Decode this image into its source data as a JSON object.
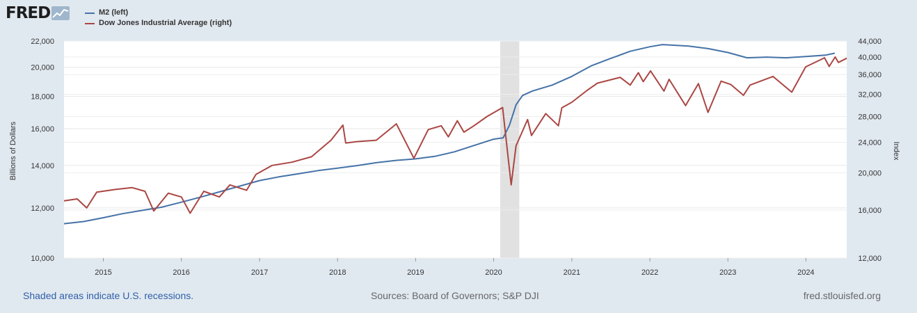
{
  "header": {
    "logo_text": "FRED",
    "logo_icon": "line-chart-icon"
  },
  "legend": [
    {
      "label": "M2 (left)",
      "color": "#4572a7"
    },
    {
      "label": "Dow Jones Industrial Average (right)",
      "color": "#aa4643"
    }
  ],
  "footer": {
    "recession_note": "Shaded areas indicate U.S. recessions.",
    "sources": "Sources: Board of Governors; S&P DJI",
    "site": "fred.stlouisfed.org"
  },
  "chart_data": {
    "type": "line",
    "scale": "log",
    "grid": true,
    "x_range": [
      "2014-07-01",
      "2024-07-10"
    ],
    "x_ticks": [
      "2015",
      "2016",
      "2017",
      "2018",
      "2019",
      "2020",
      "2021",
      "2022",
      "2023",
      "2024"
    ],
    "recessions": [
      {
        "start": "2020-02-01",
        "end": "2020-04-30"
      }
    ],
    "left_axis": {
      "label": "Billions of Dollars",
      "range": [
        10000,
        22000
      ],
      "ticks": [
        10000,
        12000,
        14000,
        16000,
        18000,
        20000,
        22000
      ],
      "tick_labels": [
        "10,000",
        "12,000",
        "14,000",
        "16,000",
        "18,000",
        "20,000",
        "22,000"
      ]
    },
    "right_axis": {
      "label": "Index",
      "range": [
        12000,
        44000
      ],
      "ticks": [
        12000,
        16000,
        20000,
        24000,
        28000,
        32000,
        36000,
        40000,
        44000
      ],
      "tick_labels": [
        "12,000",
        "16,000",
        "20,000",
        "24,000",
        "28,000",
        "32,000",
        "36,000",
        "40,000",
        "44,000"
      ]
    },
    "series": [
      {
        "name": "M2 (left)",
        "axis": "left",
        "color": "#4572a7",
        "points": [
          [
            "2014-07-01",
            11330
          ],
          [
            "2014-10-01",
            11420
          ],
          [
            "2015-01-01",
            11580
          ],
          [
            "2015-04-01",
            11750
          ],
          [
            "2015-07-01",
            11890
          ],
          [
            "2015-10-01",
            12030
          ],
          [
            "2016-01-01",
            12250
          ],
          [
            "2016-04-01",
            12480
          ],
          [
            "2016-07-01",
            12730
          ],
          [
            "2016-10-01",
            12990
          ],
          [
            "2017-01-01",
            13250
          ],
          [
            "2017-04-01",
            13430
          ],
          [
            "2017-07-01",
            13580
          ],
          [
            "2017-10-01",
            13740
          ],
          [
            "2018-01-01",
            13860
          ],
          [
            "2018-04-01",
            13990
          ],
          [
            "2018-07-01",
            14140
          ],
          [
            "2018-10-01",
            14260
          ],
          [
            "2019-01-01",
            14340
          ],
          [
            "2019-04-01",
            14470
          ],
          [
            "2019-07-01",
            14710
          ],
          [
            "2019-10-01",
            15050
          ],
          [
            "2020-01-01",
            15400
          ],
          [
            "2020-02-15",
            15480
          ],
          [
            "2020-03-15",
            16200
          ],
          [
            "2020-04-15",
            17450
          ],
          [
            "2020-05-15",
            18050
          ],
          [
            "2020-07-01",
            18350
          ],
          [
            "2020-10-01",
            18750
          ],
          [
            "2021-01-01",
            19350
          ],
          [
            "2021-04-01",
            20100
          ],
          [
            "2021-07-01",
            20650
          ],
          [
            "2021-10-01",
            21200
          ],
          [
            "2022-01-01",
            21550
          ],
          [
            "2022-03-01",
            21720
          ],
          [
            "2022-07-01",
            21600
          ],
          [
            "2022-10-01",
            21400
          ],
          [
            "2023-01-01",
            21100
          ],
          [
            "2023-04-01",
            20700
          ],
          [
            "2023-07-01",
            20750
          ],
          [
            "2023-10-01",
            20700
          ],
          [
            "2024-01-01",
            20800
          ],
          [
            "2024-04-01",
            20900
          ],
          [
            "2024-05-15",
            21050
          ]
        ]
      },
      {
        "name": "Dow Jones Industrial Average (right)",
        "axis": "right",
        "color": "#aa4643",
        "points": [
          [
            "2014-07-01",
            16900
          ],
          [
            "2014-09-01",
            17100
          ],
          [
            "2014-10-15",
            16200
          ],
          [
            "2014-12-01",
            17800
          ],
          [
            "2015-03-01",
            18100
          ],
          [
            "2015-05-15",
            18300
          ],
          [
            "2015-07-15",
            17900
          ],
          [
            "2015-08-25",
            15900
          ],
          [
            "2015-11-01",
            17700
          ],
          [
            "2016-01-01",
            17300
          ],
          [
            "2016-02-11",
            15700
          ],
          [
            "2016-04-15",
            17900
          ],
          [
            "2016-06-27",
            17300
          ],
          [
            "2016-08-15",
            18600
          ],
          [
            "2016-11-01",
            18000
          ],
          [
            "2016-12-15",
            19800
          ],
          [
            "2017-03-01",
            20900
          ],
          [
            "2017-06-01",
            21300
          ],
          [
            "2017-09-01",
            22000
          ],
          [
            "2017-12-01",
            24300
          ],
          [
            "2018-01-26",
            26600
          ],
          [
            "2018-02-08",
            23900
          ],
          [
            "2018-04-01",
            24100
          ],
          [
            "2018-07-01",
            24300
          ],
          [
            "2018-10-03",
            26800
          ],
          [
            "2018-12-24",
            21800
          ],
          [
            "2019-03-01",
            25900
          ],
          [
            "2019-05-01",
            26500
          ],
          [
            "2019-06-03",
            24800
          ],
          [
            "2019-07-15",
            27300
          ],
          [
            "2019-08-15",
            25500
          ],
          [
            "2019-10-01",
            26500
          ],
          [
            "2019-12-01",
            28000
          ],
          [
            "2020-02-12",
            29550
          ],
          [
            "2020-03-23",
            18600
          ],
          [
            "2020-04-15",
            23500
          ],
          [
            "2020-06-08",
            27500
          ],
          [
            "2020-06-26",
            25000
          ],
          [
            "2020-09-01",
            28500
          ],
          [
            "2020-10-30",
            26500
          ],
          [
            "2020-11-15",
            29500
          ],
          [
            "2021-01-01",
            30500
          ],
          [
            "2021-03-15",
            32800
          ],
          [
            "2021-05-01",
            34200
          ],
          [
            "2021-08-15",
            35400
          ],
          [
            "2021-10-01",
            33800
          ],
          [
            "2021-11-08",
            36400
          ],
          [
            "2021-12-01",
            34500
          ],
          [
            "2022-01-04",
            36800
          ],
          [
            "2022-03-08",
            32600
          ],
          [
            "2022-04-01",
            35000
          ],
          [
            "2022-06-17",
            29900
          ],
          [
            "2022-08-16",
            34100
          ],
          [
            "2022-09-30",
            28700
          ],
          [
            "2022-11-30",
            34600
          ],
          [
            "2023-01-15",
            33900
          ],
          [
            "2023-03-15",
            31800
          ],
          [
            "2023-04-15",
            33800
          ],
          [
            "2023-07-31",
            35600
          ],
          [
            "2023-10-27",
            32400
          ],
          [
            "2023-12-31",
            37700
          ],
          [
            "2024-03-28",
            39800
          ],
          [
            "2024-04-19",
            37800
          ],
          [
            "2024-05-17",
            40000
          ],
          [
            "2024-06-01",
            38700
          ],
          [
            "2024-07-10",
            39700
          ]
        ]
      }
    ]
  }
}
